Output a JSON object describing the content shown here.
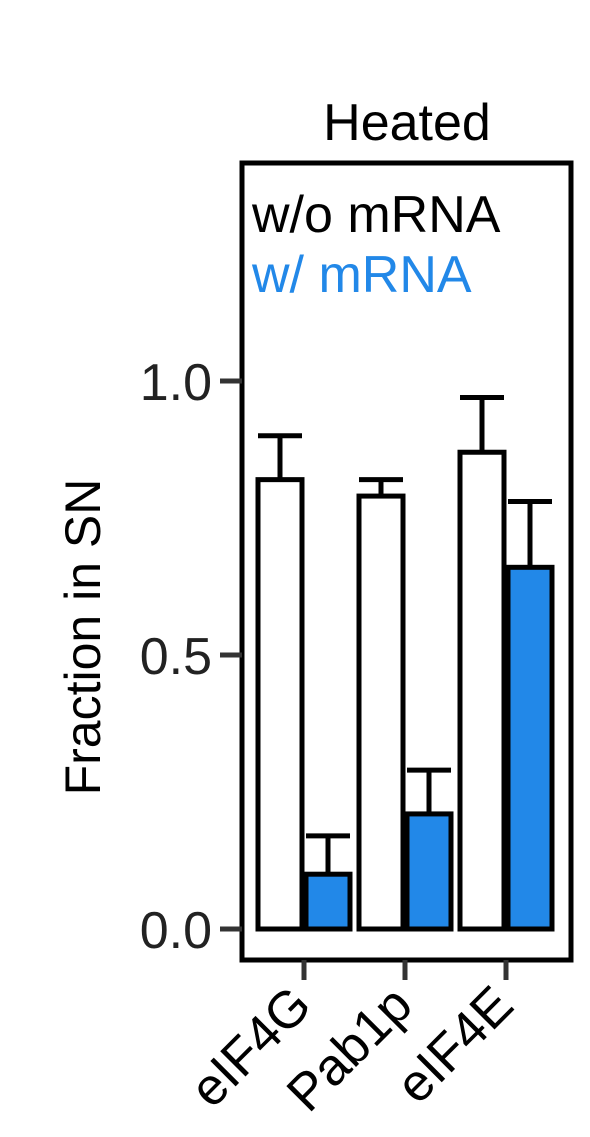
{
  "chart_data": {
    "type": "bar",
    "title": "Heated",
    "xlabel": "",
    "ylabel": "Fraction in SN",
    "categories": [
      "eIF4G",
      "Pab1p",
      "eIF4E"
    ],
    "ylim": [
      0,
      1.0
    ],
    "yticks": [
      0.0,
      0.5,
      1.0
    ],
    "ytick_labels": [
      "0.0",
      "0.5",
      "1.0"
    ],
    "legend_position": "top",
    "series": [
      {
        "name": "w/o mRNA",
        "color": "#ffffff",
        "legend_color": "#000000",
        "values": [
          0.82,
          0.79,
          0.87
        ],
        "errors": [
          0.08,
          0.03,
          0.1
        ]
      },
      {
        "name": "w/ mRNA",
        "color": "#2288e8",
        "legend_color": "#2288e8",
        "values": [
          0.1,
          0.21,
          0.66
        ],
        "errors": [
          0.07,
          0.08,
          0.12
        ]
      }
    ]
  }
}
